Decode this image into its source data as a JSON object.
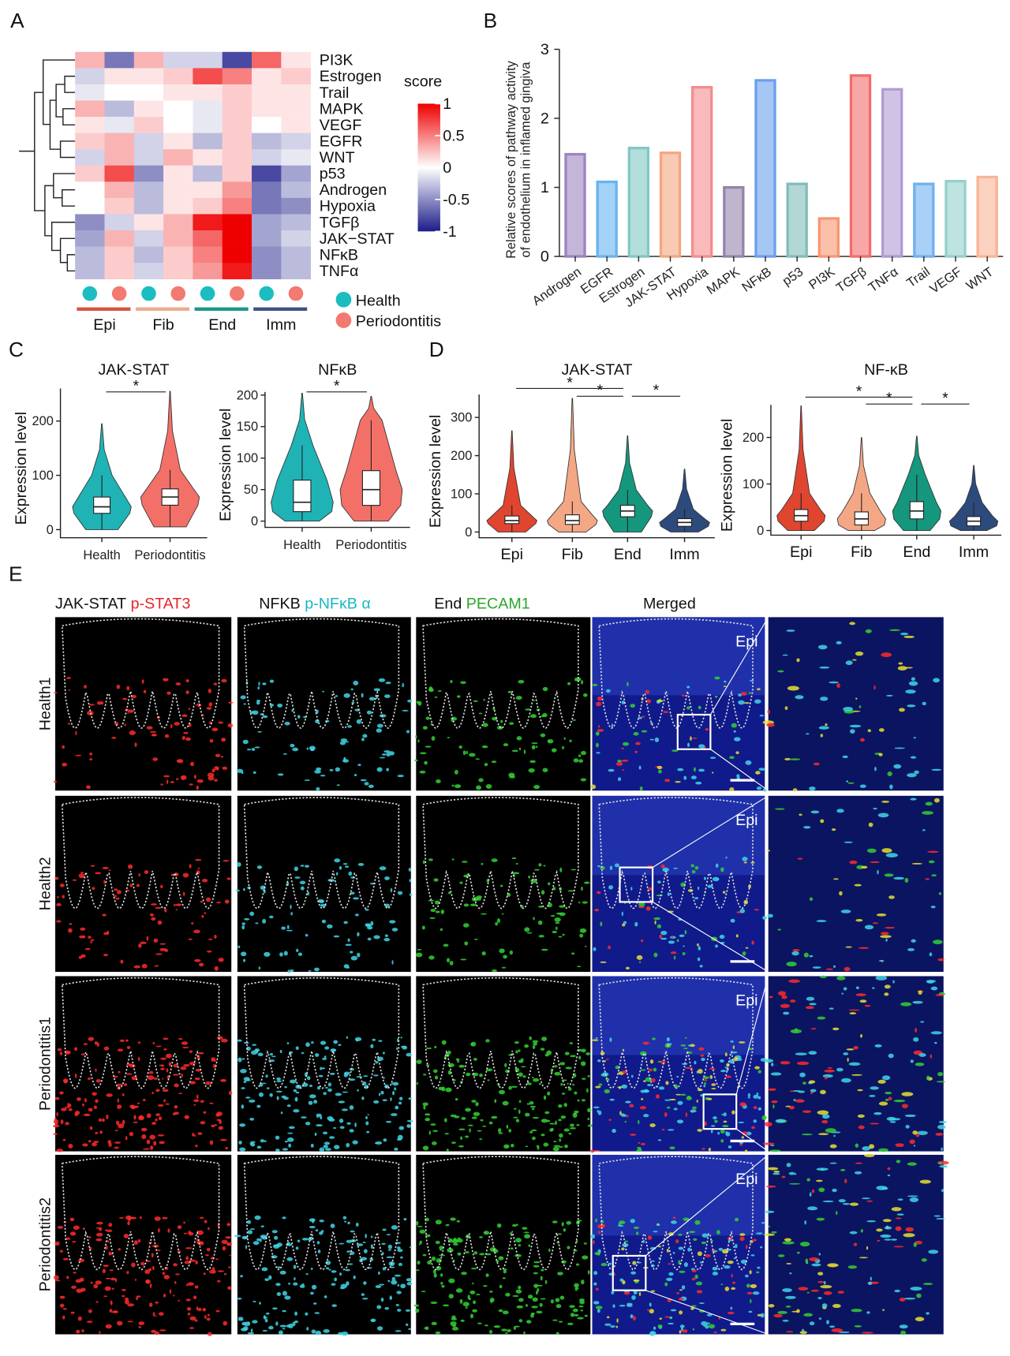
{
  "panel_labels": [
    "A",
    "B",
    "C",
    "D",
    "E"
  ],
  "chart_data": [
    {
      "type": "heatmap",
      "row_labels": [
        "PI3K",
        "Estrogen",
        "Trail",
        "MAPK",
        "VEGF",
        "EGFR",
        "WNT",
        "p53",
        "Androgen",
        "Hypoxia",
        "TGFβ",
        "JAK−STAT",
        "NFκB",
        "TNFα"
      ],
      "groups": [
        {
          "name": "Epi",
          "color": "#d9543f"
        },
        {
          "name": "Fib",
          "color": "#eeaa8e"
        },
        {
          "name": "End",
          "color": "#1a9a86"
        },
        {
          "name": "Imm",
          "color": "#3e5181"
        }
      ],
      "conditions": [
        {
          "name": "Health",
          "color": "#1bbdc1"
        },
        {
          "name": "Periodontitis",
          "color": "#f27a70"
        }
      ],
      "values": [
        [
          0.3,
          -0.6,
          0.3,
          -0.2,
          -0.2,
          -0.8,
          0.6,
          0.1
        ],
        [
          -0.2,
          0.1,
          0.1,
          0.2,
          0.7,
          0.5,
          0.1,
          0.2
        ],
        [
          -0.1,
          0.0,
          0.0,
          0.1,
          0.1,
          0.2,
          0.1,
          0.1
        ],
        [
          0.3,
          -0.3,
          0.1,
          0.0,
          -0.1,
          0.2,
          0.1,
          0.1
        ],
        [
          0.1,
          -0.1,
          0.2,
          0.0,
          -0.1,
          0.2,
          0.0,
          0.1
        ],
        [
          0.2,
          0.3,
          -0.2,
          0.1,
          -0.3,
          0.2,
          -0.3,
          -0.2
        ],
        [
          -0.2,
          0.3,
          -0.2,
          0.3,
          0.1,
          0.2,
          -0.2,
          -0.1
        ],
        [
          0.2,
          0.7,
          -0.5,
          0.1,
          -0.3,
          0.2,
          -0.8,
          -0.4
        ],
        [
          0.0,
          0.3,
          -0.3,
          0.1,
          0.1,
          0.4,
          -0.6,
          -0.3
        ],
        [
          0.0,
          0.2,
          -0.3,
          0.1,
          0.2,
          0.5,
          -0.6,
          -0.5
        ],
        [
          -0.5,
          -0.2,
          0.1,
          0.3,
          0.9,
          1.0,
          -0.4,
          -0.3
        ],
        [
          -0.4,
          0.3,
          -0.2,
          0.3,
          0.6,
          1.0,
          -0.4,
          -0.2
        ],
        [
          -0.3,
          0.2,
          -0.3,
          0.2,
          0.5,
          1.0,
          -0.5,
          -0.3
        ],
        [
          -0.3,
          0.2,
          -0.2,
          0.2,
          0.4,
          0.9,
          -0.5,
          -0.3
        ]
      ],
      "colorbar_title": "score",
      "zlim": [
        -1,
        1
      ],
      "zticks": [
        1,
        0.5,
        0,
        -0.5,
        -1
      ],
      "colorscale": [
        "#1c1c8a",
        "#ffffff",
        "#ee0000"
      ]
    },
    {
      "type": "bar",
      "ylabel": [
        "Relative scores of pathway activity",
        "of endothelium in inflamed gingiva"
      ],
      "categories": [
        "Androgen",
        "EGFR",
        "Estrogen",
        "JAK-STAT",
        "Hypoxia",
        "MAPK",
        "NFκB",
        "p53",
        "PI3K",
        "TGFβ",
        "TNFα",
        "Trail",
        "VEGF",
        "WNT"
      ],
      "values": [
        1.48,
        1.08,
        1.57,
        1.5,
        2.45,
        1.0,
        2.55,
        1.05,
        0.55,
        2.62,
        2.42,
        1.05,
        1.09,
        1.15
      ],
      "colors": [
        "#9c83c0",
        "#66b4f0",
        "#80c8c4",
        "#f4a680",
        "#f48c8c",
        "#9484ac",
        "#6aa0ec",
        "#80bdb9",
        "#f79670",
        "#f46c6c",
        "#b09ad4",
        "#70b0f0",
        "#94d0cc",
        "#f8b494"
      ],
      "ylim": [
        0,
        3
      ],
      "yticks": [
        0,
        1,
        2,
        3
      ]
    },
    {
      "type": "violin",
      "title": "JAK-STAT",
      "ylabel": "Expression level",
      "categories": [
        "Health",
        "Periodontitis"
      ],
      "colors": [
        "#1fb3b5",
        "#f37068"
      ],
      "stats": [
        {
          "min": 0,
          "q1": 30,
          "median": 42,
          "q3": 60,
          "whisker_high": 100,
          "max": 195
        },
        {
          "min": 5,
          "q1": 45,
          "median": 60,
          "q3": 75,
          "whisker_high": 110,
          "max": 255
        }
      ],
      "significance": [
        "*"
      ],
      "ylim": [
        -15,
        260
      ],
      "yticks": [
        0,
        100,
        200
      ]
    },
    {
      "type": "violin",
      "title": "NFκB",
      "ylabel": "Expression level",
      "categories": [
        "Health",
        "Periodontitis"
      ],
      "colors": [
        "#1fb3b5",
        "#f37068"
      ],
      "stats": [
        {
          "min": 0,
          "q1": 15,
          "median": 30,
          "q3": 65,
          "whisker_high": 120,
          "max": 203
        },
        {
          "min": 0,
          "q1": 25,
          "median": 50,
          "q3": 80,
          "whisker_high": 160,
          "max": 198
        }
      ],
      "significance": [
        "*"
      ],
      "ylim": [
        -10,
        205
      ],
      "yticks": [
        0,
        50,
        100,
        150,
        200
      ]
    },
    {
      "type": "violin",
      "title": "JAK-STAT",
      "ylabel": "Expression level",
      "categories": [
        "Epi",
        "Fib",
        "End",
        "Imm"
      ],
      "colors": [
        "#e0452f",
        "#f4a784",
        "#14977d",
        "#2d4a7d"
      ],
      "stats": [
        {
          "min": 0,
          "q1": 22,
          "median": 30,
          "q3": 42,
          "whisker_high": 70,
          "max": 265
        },
        {
          "min": 0,
          "q1": 20,
          "median": 30,
          "q3": 45,
          "whisker_high": 80,
          "max": 350
        },
        {
          "min": 0,
          "q1": 40,
          "median": 55,
          "q3": 70,
          "whisker_high": 110,
          "max": 252
        },
        {
          "min": 0,
          "q1": 15,
          "median": 25,
          "q3": 35,
          "whisker_high": 60,
          "max": 165
        }
      ],
      "significance": [
        "*",
        "*",
        "*"
      ],
      "ylim": [
        -15,
        360
      ],
      "yticks": [
        0,
        100,
        200,
        300
      ]
    },
    {
      "type": "violin",
      "title": "NF-κB",
      "ylabel": "Expression level",
      "categories": [
        "Epi",
        "Fib",
        "End",
        "Imm"
      ],
      "colors": [
        "#e0452f",
        "#f4a784",
        "#14977d",
        "#2d4a7d"
      ],
      "stats": [
        {
          "min": 0,
          "q1": 20,
          "median": 32,
          "q3": 45,
          "whisker_high": 80,
          "max": 268
        },
        {
          "min": 0,
          "q1": 12,
          "median": 25,
          "q3": 40,
          "whisker_high": 80,
          "max": 200
        },
        {
          "min": 0,
          "q1": 25,
          "median": 42,
          "q3": 62,
          "whisker_high": 120,
          "max": 203
        },
        {
          "min": 0,
          "q1": 10,
          "median": 20,
          "q3": 30,
          "whisker_high": 60,
          "max": 140
        }
      ],
      "significance": [
        "*",
        "*",
        "*"
      ],
      "ylim": [
        -10,
        270
      ],
      "yticks": [
        0,
        100,
        200
      ]
    }
  ],
  "panel_e": {
    "column_headers": [
      {
        "target": "JAK-STAT",
        "marker": "p-STAT3"
      },
      {
        "target": "NFKB",
        "marker": "p-NFκB α"
      },
      {
        "target": "End",
        "marker": "PECAM1"
      },
      {
        "target": "Merged"
      }
    ],
    "row_labels": [
      "Health1",
      "Health2",
      "Periodontitis1",
      "Periodontitis2"
    ],
    "region_labels": [
      "Epi",
      "Epi",
      "Epi",
      "Epi"
    ]
  }
}
